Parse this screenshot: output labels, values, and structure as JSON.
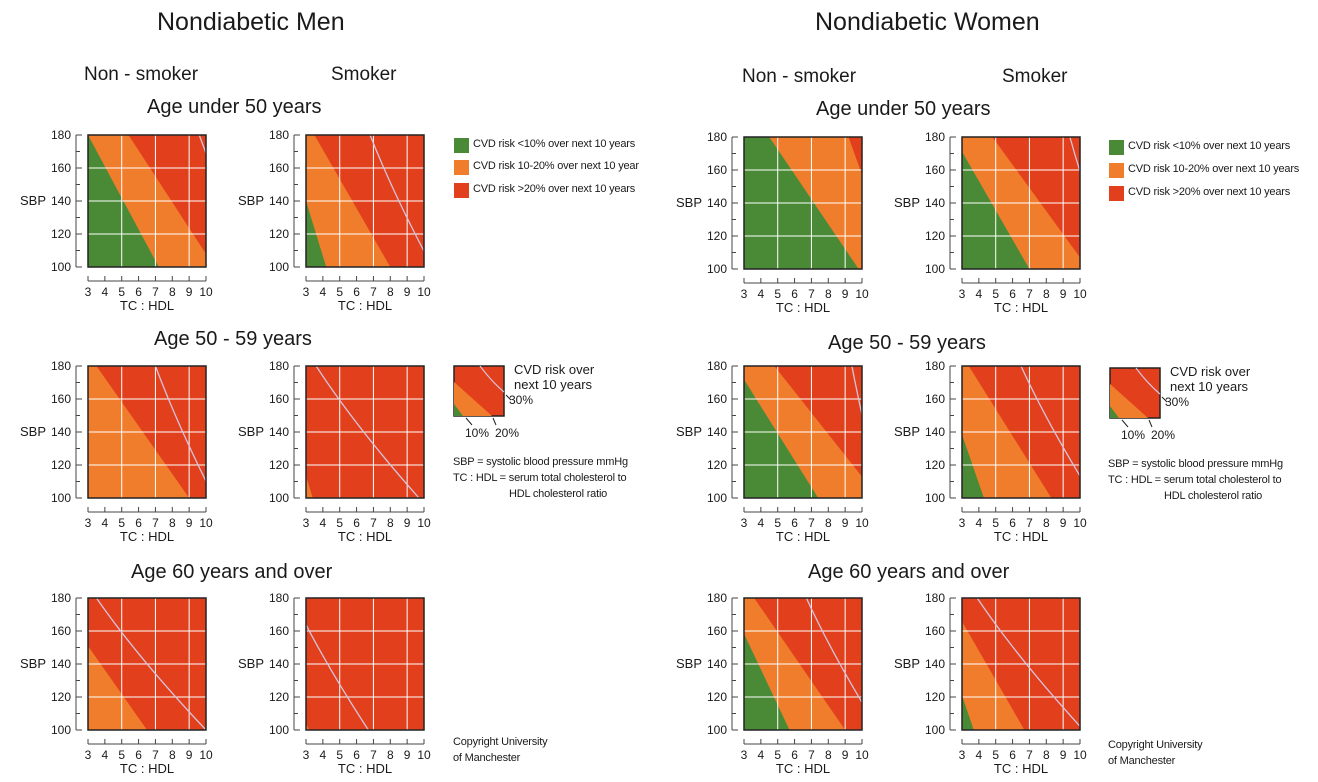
{
  "titles": {
    "men": "Nondiabetic Men",
    "women": "Nondiabetic Women",
    "non_smoker": "Non - smoker",
    "smoker": "Smoker"
  },
  "ages": {
    "under50": "Age under 50 years",
    "a5059": "Age 50 - 59 years",
    "over60": "Age 60 years and over"
  },
  "legend": {
    "green": "CVD risk <10% over next 10 years",
    "orange": "CVD risk 10-20% over next 10 years",
    "red": "CVD risk >20% over next 10 years"
  },
  "key": {
    "title_line1": "CVD risk over",
    "title_line2": "next 10 years",
    "label_30": "30%",
    "label_10": "10%",
    "label_20": "20%"
  },
  "notes": {
    "sbp_line": "SBP = systolic blood pressure mmHg",
    "tc_line1": "TC : HDL = serum total cholesterol to",
    "tc_line2": "HDL cholesterol ratio"
  },
  "copyright": {
    "line1": "Copyright University",
    "line2": "of Manchester"
  },
  "colors": {
    "green": "#4a8a36",
    "orange": "#f07d2c",
    "red": "#e2401c",
    "grid": "#ffffff",
    "contour_30": "#d7c3dc"
  },
  "chart_data": {
    "type": "area",
    "description_axes": {
      "xlabel": "TC : HDL",
      "ylabel": "SBP",
      "xlim": [
        3,
        10
      ],
      "ylim": [
        100,
        180
      ],
      "xticks": [
        3,
        4,
        5,
        6,
        7,
        8,
        9,
        10
      ],
      "yticks": [
        100,
        120,
        140,
        160,
        180
      ]
    },
    "boundary_note": "Each boundary is a line from (x at SBP 180) to (x at SBP 100); null = boundary not inside the plot.",
    "panels": [
      {
        "id": "men-u50-ns",
        "group": "Nondiabetic Men",
        "age": "Age under 50 years",
        "smoking": "Non - smoker",
        "b10": {
          "top": 3,
          "bottom": 7.2
        },
        "b20": {
          "top": 5.4,
          "bottom": 10.5
        },
        "b30": {
          "top": 9.6,
          "bottom": 13
        }
      },
      {
        "id": "men-u50-s",
        "group": "Nondiabetic Men",
        "age": "Age under 50 years",
        "smoking": "Smoker",
        "b10": {
          "top": 1.8,
          "bottom": 4.2
        },
        "b20": {
          "top": 3.5,
          "bottom": 8
        },
        "b30": {
          "top": 6.8,
          "bottom": 10.5
        }
      },
      {
        "id": "men-5059-ns",
        "group": "Nondiabetic Men",
        "age": "Age 50 - 59 years",
        "smoking": "Non - smoker",
        "b10": null,
        "b20": {
          "top": 3.5,
          "bottom": 9
        },
        "b30": {
          "top": 7,
          "bottom": 10.5
        }
      },
      {
        "id": "men-5059-s",
        "group": "Nondiabetic Men",
        "age": "Age 50 - 59 years",
        "smoking": "Smoker",
        "b10": null,
        "b20": {
          "top": 1,
          "bottom": 3.4
        },
        "b30": {
          "top": 3.6,
          "bottom": 9.7
        }
      },
      {
        "id": "men-60-ns",
        "group": "Nondiabetic Men",
        "age": "Age 60 years and over",
        "smoking": "Non - smoker",
        "b10": null,
        "b20": {
          "top": 1,
          "bottom": 6.5
        },
        "b30": {
          "top": 3.5,
          "bottom": 10
        }
      },
      {
        "id": "men-60-s",
        "group": "Nondiabetic Men",
        "age": "Age 60 years and over",
        "smoking": "Smoker",
        "b10": null,
        "b20": {
          "top": -1,
          "bottom": 3.2
        },
        "b30": {
          "top": 2.2,
          "bottom": 6.7
        }
      },
      {
        "id": "women-u50-ns",
        "group": "Nondiabetic Women",
        "age": "Age under 50 years",
        "smoking": "Non - smoker",
        "b10": {
          "top": 4.5,
          "bottom": 9.8
        },
        "b20": {
          "top": 9.2,
          "bottom": 12
        },
        "b30": null
      },
      {
        "id": "women-u50-s",
        "group": "Nondiabetic Women",
        "age": "Age under 50 years",
        "smoking": "Smoker",
        "b10": {
          "top": 2.5,
          "bottom": 7
        },
        "b20": {
          "top": 4.8,
          "bottom": 10.5
        },
        "b30": {
          "top": 9.4,
          "bottom": 12
        }
      },
      {
        "id": "women-5059-ns",
        "group": "Nondiabetic Women",
        "age": "Age 50 - 59 years",
        "smoking": "Non - smoker",
        "b10": {
          "top": 2.5,
          "bottom": 7.4
        },
        "b20": {
          "top": 4.8,
          "bottom": 11
        },
        "b30": {
          "top": 9.4,
          "bottom": 11.2
        }
      },
      {
        "id": "women-5059-s",
        "group": "Nondiabetic Women",
        "age": "Age 50 - 59 years",
        "smoking": "Smoker",
        "b10": {
          "top": 1.6,
          "bottom": 4.3
        },
        "b20": {
          "top": 3.4,
          "bottom": 8.3
        },
        "b30": {
          "top": 6.5,
          "bottom": 10.8
        }
      },
      {
        "id": "women-60-ns",
        "group": "Nondiabetic Women",
        "age": "Age 60 years and over",
        "smoking": "Non - smoker",
        "b10": {
          "top": 2,
          "bottom": 5.7
        },
        "b20": {
          "top": 3.6,
          "bottom": 9
        },
        "b30": {
          "top": 6.7,
          "bottom": 11
        }
      },
      {
        "id": "women-60-s",
        "group": "Nondiabetic Women",
        "age": "Age 60 years and over",
        "smoking": "Smoker",
        "b10": {
          "top": 1,
          "bottom": 3.7
        },
        "b20": {
          "top": 2.2,
          "bottom": 6.7
        },
        "b30": {
          "top": 3.9,
          "bottom": 10.2
        }
      }
    ]
  }
}
